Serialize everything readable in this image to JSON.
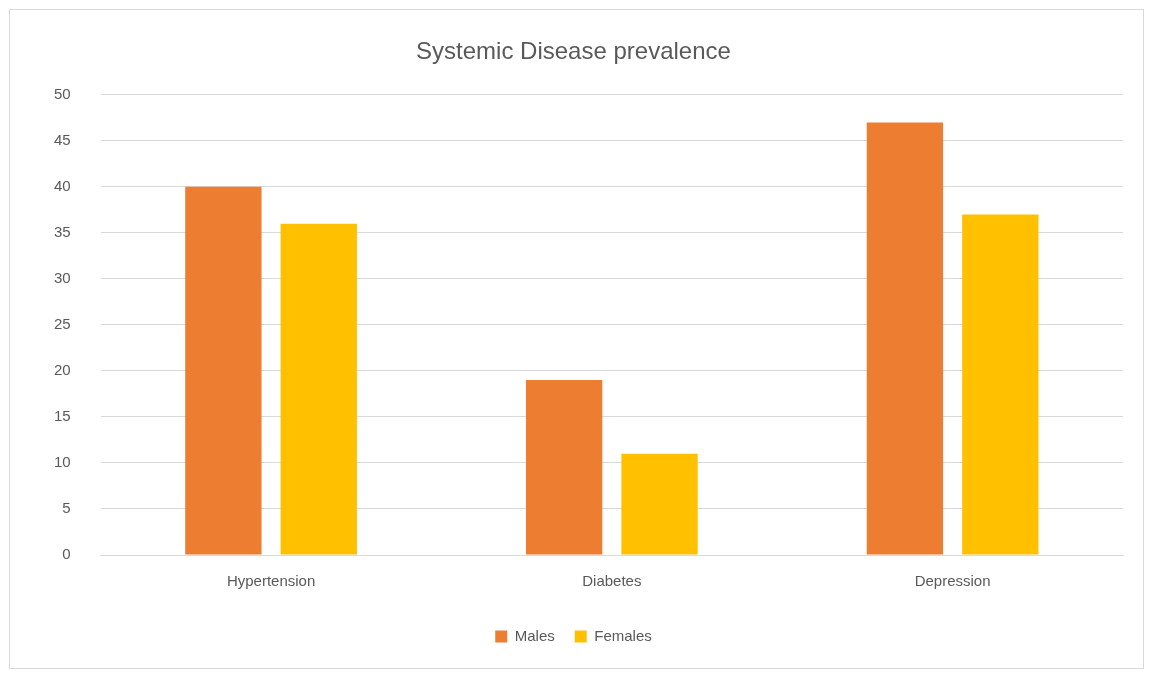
{
  "chart_data": {
    "type": "bar",
    "title": "Systemic Disease prevalence",
    "categories": [
      "Hypertension",
      "Diabetes",
      "Depression"
    ],
    "series": [
      {
        "name": "Males",
        "color": "#ed7d31",
        "values": [
          40,
          19,
          47
        ]
      },
      {
        "name": "Females",
        "color": "#ffc000",
        "values": [
          36,
          11,
          37
        ]
      }
    ],
    "ylim": [
      0,
      50
    ],
    "yticks": [
      0,
      5,
      10,
      15,
      20,
      25,
      30,
      35,
      40,
      45,
      50
    ],
    "grid": "y",
    "legend": "bottom"
  }
}
